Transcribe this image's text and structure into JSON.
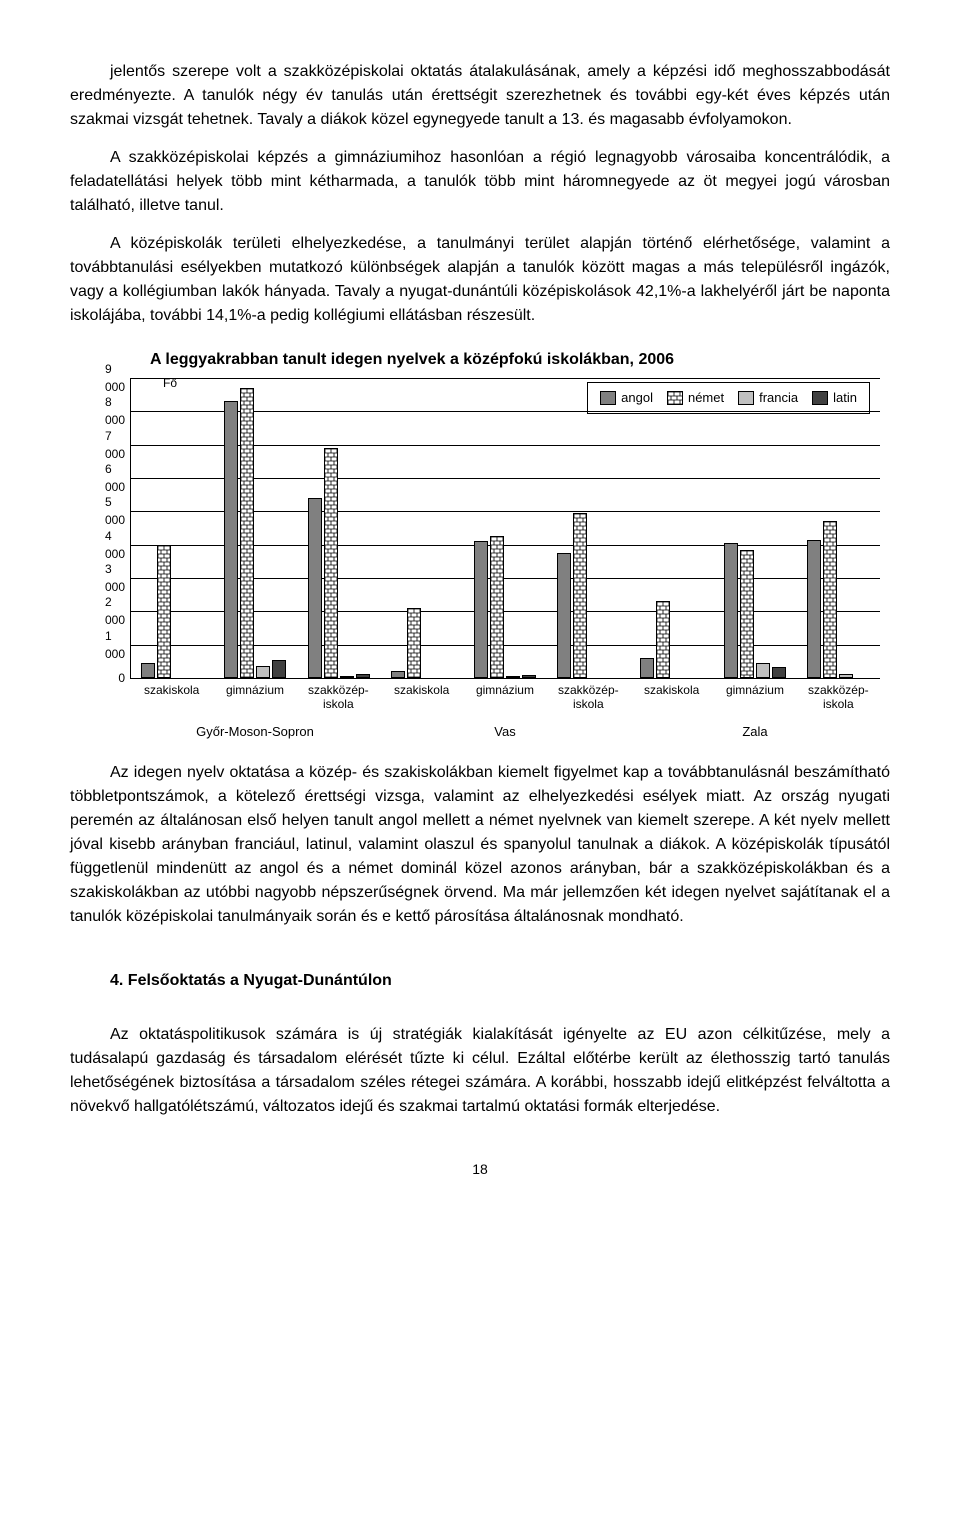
{
  "para1": "jelentős szerepe volt a szakközépiskolai oktatás átalakulásának, amely a képzési idő meghosszabbodását eredményezte. A tanulók négy év tanulás után érettségit szerezhetnek és további egy-két éves képzés után szakmai vizsgát tehetnek. Tavaly a diákok közel egynegyede tanult a 13. és magasabb évfolyamokon.",
  "para2": "A szakközépiskolai képzés a gimnáziumihoz hasonlóan a régió legnagyobb városaiba koncentrálódik, a feladatellátási helyek több mint kétharmada, a tanulók több mint háromnegyede az öt megyei jogú városban található, illetve tanul.",
  "para3": "A középiskolák területi elhelyezkedése, a tanulmányi terület alapján történő elérhetősége, valamint a továbbtanulási esélyekben mutatkozó különbségek alapján a tanulók között magas a más településről ingázók, vagy a kollégiumban lakók hányada. Tavaly a nyugat-dunántúli középiskolások 42,1%-a lakhelyéről járt be naponta iskolájába, további 14,1%-a pedig kollégiumi ellátásban részesült.",
  "para4": "Az idegen nyelv oktatása a közép- és szakiskolákban kiemelt figyelmet kap a továbbtanulásnál beszámítható többletpontszámok, a kötelező érettségi vizsga, valamint az elhelyezkedési esélyek miatt. Az ország nyugati peremén az általánosan első helyen tanult angol mellett a német nyelvnek van kiemelt szerepe. A két nyelv mellett jóval kisebb arányban franciául, latinul, valamint olaszul és spanyolul tanulnak a diákok. A középiskolák típusától függetlenül mindenütt az angol és a német dominál közel azonos arányban, bár a szakközépiskolákban és a szakiskolákban az utóbbi nagyobb népszerűségnek örvend. Ma már jellemzően két idegen nyelvet sajátítanak el a tanulók középiskolai tanulmányaik során és e kettő párosítása általánosnak mondható.",
  "section_head": "4. Felsőoktatás a Nyugat-Dunántúlon",
  "para5": "Az oktatáspolitikusok számára is új stratégiák kialakítását igényelte az EU azon célkitűzése, mely a tudásalapú gazdaság és társadalom elérését tűzte ki célul. Ezáltal előtérbe került az élethosszig tartó tanulás lehetőségének biztosítása a társadalom széles rétegei számára. A korábbi, hosszabb idejű elitképzést felváltotta a növekvő hallgatólétszámú, változatos idejű és szakmai tartalmú oktatási formák elterjedése.",
  "page_num": "18",
  "chart": {
    "type": "bar",
    "title": "A leggyakrabban tanult idegen nyelvek a középfokú iskolákban, 2006",
    "y_axis_label": "Fő",
    "y_max": 9000,
    "y_tick_step": 1000,
    "y_ticks": [
      "0",
      "1 000",
      "2 000",
      "3 000",
      "4 000",
      "5 000",
      "6 000",
      "7 000",
      "8 000",
      "9 000"
    ],
    "series_names": [
      "angol",
      "német",
      "francia",
      "latin"
    ],
    "series_colors": [
      "#808080",
      "#ffffff",
      "#c0c0c0",
      "#404040"
    ],
    "series_patterns": [
      "solid",
      "brick",
      "solid",
      "solid"
    ],
    "regions": [
      {
        "name": "Győr-Moson-Sopron",
        "groups": [
          {
            "label_lines": [
              "szakiskola"
            ],
            "values": [
              450,
              4000,
              0,
              0
            ]
          },
          {
            "label_lines": [
              "gimnázium"
            ],
            "values": [
              8300,
              8700,
              350,
              550
            ]
          },
          {
            "label_lines": [
              "szakközép-",
              "iskola"
            ],
            "values": [
              5400,
              6900,
              60,
              120
            ]
          }
        ]
      },
      {
        "name": "Vas",
        "groups": [
          {
            "label_lines": [
              "szakiskola"
            ],
            "values": [
              200,
              2100,
              0,
              0
            ]
          },
          {
            "label_lines": [
              "gimnázium"
            ],
            "values": [
              4100,
              4250,
              60,
              100
            ]
          },
          {
            "label_lines": [
              "szakközép-",
              "iskola"
            ],
            "values": [
              3750,
              4950,
              0,
              0
            ]
          }
        ]
      },
      {
        "name": "Zala",
        "groups": [
          {
            "label_lines": [
              "szakiskola"
            ],
            "values": [
              600,
              2300,
              0,
              0
            ]
          },
          {
            "label_lines": [
              "gimnázium"
            ],
            "values": [
              4050,
              3850,
              450,
              320
            ]
          },
          {
            "label_lines": [
              "szakközép-",
              "iskola"
            ],
            "values": [
              4150,
              4700,
              130,
              0
            ]
          }
        ]
      }
    ]
  }
}
